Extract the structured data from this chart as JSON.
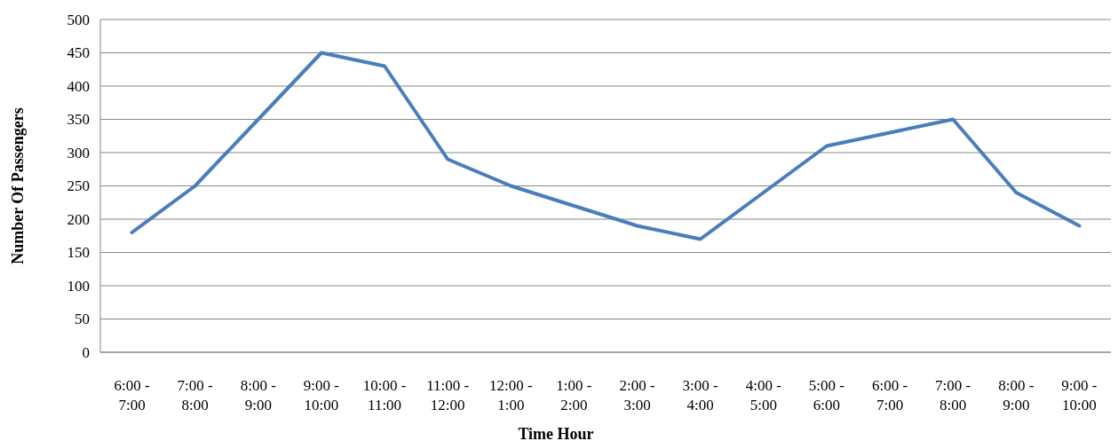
{
  "chart_data": {
    "type": "line",
    "xlabel": "Time Hour",
    "ylabel": "Number Of Passengers",
    "categories": [
      "6:00 - 7:00",
      "7:00 - 8:00",
      "8:00 - 9:00",
      "9:00 - 10:00",
      "10:00 - 11:00",
      "11:00 - 12:00",
      "12:00 - 1:00",
      "1:00 - 2:00",
      "2:00 - 3:00",
      "3:00 - 4:00",
      "4:00 - 5:00",
      "5:00 - 6:00",
      "6:00 - 7:00",
      "7:00 - 8:00",
      "8:00 - 9:00",
      "9:00 - 10:00"
    ],
    "series": [
      {
        "color": "#4a7ebb",
        "values": [
          180,
          250,
          350,
          450,
          430,
          290,
          250,
          220,
          190,
          170,
          240,
          310,
          330,
          350,
          240,
          190
        ]
      }
    ],
    "ylim": [
      0,
      500
    ],
    "yticks": [
      0,
      50,
      100,
      150,
      200,
      250,
      300,
      350,
      400,
      450,
      500
    ],
    "grid": "y",
    "marker": "none",
    "line_style": "solid"
  }
}
